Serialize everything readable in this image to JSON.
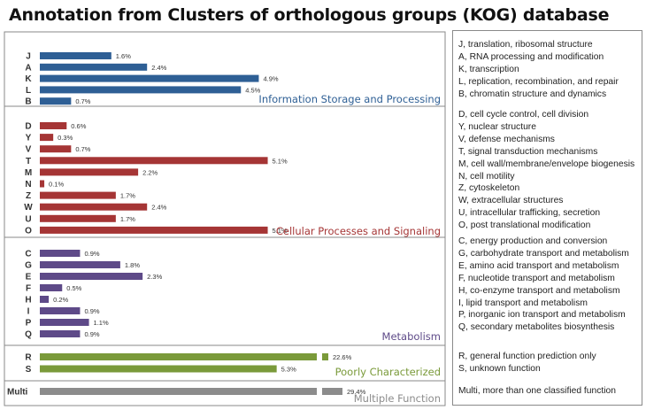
{
  "title": "Annotation from Clusters of orthologous groups (KOG) database",
  "chart_data": {
    "type": "bar",
    "orientation": "horizontal",
    "value_unit": "%",
    "groups": [
      {
        "name": "Information Storage and Processing",
        "color": "#2e5f95",
        "bars": [
          {
            "code": "J",
            "value": 1.6,
            "label": "1.6%"
          },
          {
            "code": "A",
            "value": 2.4,
            "label": "2.4%"
          },
          {
            "code": "K",
            "value": 4.9,
            "label": "4.9%"
          },
          {
            "code": "L",
            "value": 4.5,
            "label": "4.5%"
          },
          {
            "code": "B",
            "value": 0.7,
            "label": "0.7%"
          }
        ]
      },
      {
        "name": "Cellular Processes and Signaling",
        "color": "#a53535",
        "bars": [
          {
            "code": "D",
            "value": 0.6,
            "label": "0.6%"
          },
          {
            "code": "Y",
            "value": 0.3,
            "label": "0.3%"
          },
          {
            "code": "V",
            "value": 0.7,
            "label": "0.7%"
          },
          {
            "code": "T",
            "value": 5.1,
            "label": "5.1%"
          },
          {
            "code": "M",
            "value": 2.2,
            "label": "2.2%"
          },
          {
            "code": "N",
            "value": 0.1,
            "label": "0.1%"
          },
          {
            "code": "Z",
            "value": 1.7,
            "label": "1.7%"
          },
          {
            "code": "W",
            "value": 2.4,
            "label": "2.4%"
          },
          {
            "code": "U",
            "value": 1.7,
            "label": "1.7%"
          },
          {
            "code": "O",
            "value": 5.1,
            "label": "5.1%"
          }
        ]
      },
      {
        "name": "Metabolism",
        "color": "#5e4a88",
        "bars": [
          {
            "code": "C",
            "value": 0.9,
            "label": "0.9%"
          },
          {
            "code": "G",
            "value": 1.8,
            "label": "1.8%"
          },
          {
            "code": "E",
            "value": 2.3,
            "label": "2.3%"
          },
          {
            "code": "F",
            "value": 0.5,
            "label": "0.5%"
          },
          {
            "code": "H",
            "value": 0.2,
            "label": "0.2%"
          },
          {
            "code": "I",
            "value": 0.9,
            "label": "0.9%"
          },
          {
            "code": "P",
            "value": 1.1,
            "label": "1.1%"
          },
          {
            "code": "Q",
            "value": 0.9,
            "label": "0.9%"
          }
        ]
      },
      {
        "name": "Poorly Characterized",
        "color": "#7a9a3a",
        "bars": [
          {
            "code": "R",
            "value": 22.6,
            "label": "22.6%",
            "axis_break": true
          },
          {
            "code": "S",
            "value": 5.3,
            "label": "5.3%"
          }
        ]
      },
      {
        "name": "Multiple Function",
        "color": "#8c8c8c",
        "bars": [
          {
            "code": "Multi",
            "value": 29.4,
            "label": "29.4%",
            "axis_break": true
          }
        ]
      }
    ]
  },
  "descriptions": [
    [
      "J, translation, ribosomal structure",
      "A, RNA processing and modification",
      "K, transcription",
      "L, replication, recombination, and repair",
      "B, chromatin structure and dynamics"
    ],
    [
      "D, cell cycle control, cell division",
      "Y, nuclear structure",
      "V, defense mechanisms",
      "T, signal transduction mechanisms",
      "M, cell wall/membrane/envelope biogenesis",
      "N, cell motility",
      "Z, cytoskeleton",
      "W, extracellular structures",
      "U, intracellular trafficking, secretion",
      "O, post translational modification"
    ],
    [
      "C, energy production and conversion",
      "G, carbohydrate transport and metabolism",
      "E, amino acid transport and metabolism",
      "F, nucleotide transport and metabolism",
      "H, co-enzyme transport and metabolism",
      "I, lipid transport and metabolism",
      "P, inorganic ion transport and metabolism",
      "Q, secondary metabolites biosynthesis"
    ],
    [
      "R, general function prediction only",
      "S, unknown function"
    ],
    [
      "Multi, more than one classified function"
    ]
  ]
}
